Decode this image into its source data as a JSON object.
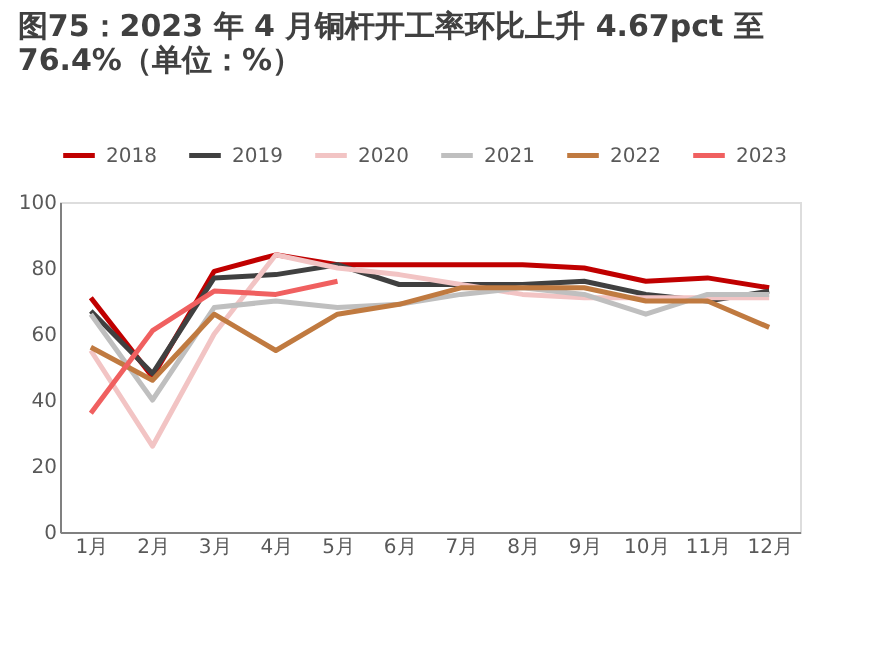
{
  "chart_data": {
    "type": "line",
    "title": [
      "图75：2023 年 4 月铜杆开工率环比上升 4.67pct 至",
      "76.4%（单位：%）"
    ],
    "categories": [
      "1月",
      "2月",
      "3月",
      "4月",
      "5月",
      "6月",
      "7月",
      "8月",
      "9月",
      "10月",
      "11月",
      "12月"
    ],
    "series": [
      {
        "name": "2018",
        "color": "#c00000",
        "values": [
          71,
          47,
          79,
          84,
          81,
          81,
          81,
          81,
          80,
          76,
          77,
          74
        ]
      },
      {
        "name": "2019",
        "color": "#404040",
        "values": [
          67,
          48,
          77,
          78,
          81,
          75,
          75,
          75,
          76,
          72,
          70,
          73
        ]
      },
      {
        "name": "2020",
        "color": "#f2c4c4",
        "values": [
          55,
          26,
          60,
          84,
          80,
          78,
          75,
          72,
          71,
          71,
          71,
          71
        ]
      },
      {
        "name": "2021",
        "color": "#bfbfbf",
        "values": [
          66,
          40,
          68,
          70,
          68,
          69,
          72,
          74,
          72,
          66,
          72,
          72
        ]
      },
      {
        "name": "2022",
        "color": "#c07a40",
        "values": [
          56,
          46,
          66,
          55,
          66,
          69,
          74,
          74,
          74,
          70,
          70,
          62
        ]
      },
      {
        "name": "2023",
        "color": "#f06060",
        "values": [
          36,
          61,
          73,
          72,
          76,
          null,
          null,
          null,
          null,
          null,
          null,
          null
        ]
      }
    ],
    "ylim": [
      0,
      100
    ],
    "yticks": [
      0,
      20,
      40,
      60,
      80,
      100
    ],
    "grid": false,
    "legend": "top",
    "marker": "none",
    "line_style": "solid"
  }
}
